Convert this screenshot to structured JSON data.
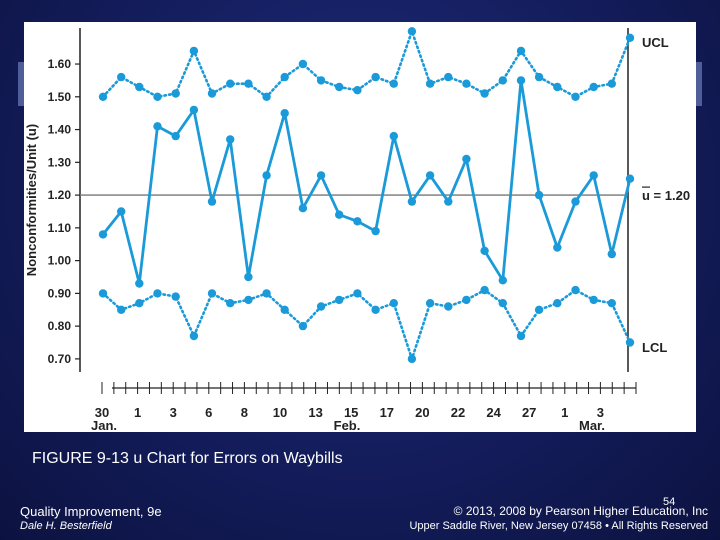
{
  "slide": {
    "caption": "FIGURE 9-13 u Chart for Errors on Waybills",
    "footer_title": "Quality Improvement, 9e",
    "footer_author": "Dale H. Besterfield",
    "page_number": "54",
    "copyright": "© 2013, 2008 by Pearson Higher Education, Inc",
    "address": "Upper Saddle River, New Jersey 07458 • All Rights Reserved"
  },
  "colors": {
    "line": "#1a9ad8",
    "center": "#777777",
    "axis": "#222222",
    "accent": "#1e2b7a"
  },
  "chart_data": {
    "type": "line",
    "ylabel": "Nonconformities/Unit (u)",
    "ylim": [
      0.66,
      1.71
    ],
    "yticks": [
      "0.70",
      "0.80",
      "0.90",
      "1.00",
      "1.10",
      "1.20",
      "1.30",
      "1.40",
      "1.50",
      "1.60"
    ],
    "xtick_labels": [
      "30",
      "1",
      "3",
      "6",
      "8",
      "10",
      "13",
      "15",
      "17",
      "20",
      "22",
      "24",
      "27",
      "1",
      "3"
    ],
    "month_labels": [
      "Jan.",
      "Feb.",
      "Mar."
    ],
    "center_line": 1.2,
    "center_label": "u = 1.20",
    "ucl_label": "UCL",
    "lcl_label": "LCL",
    "series": [
      {
        "name": "UCL",
        "style": "dotted",
        "values": [
          1.5,
          1.56,
          1.53,
          1.5,
          1.51,
          1.64,
          1.51,
          1.54,
          1.54,
          1.5,
          1.56,
          1.6,
          1.55,
          1.53,
          1.52,
          1.56,
          1.54,
          1.7,
          1.54,
          1.56,
          1.54,
          1.51,
          1.55,
          1.64,
          1.56,
          1.53,
          1.5,
          1.53,
          1.54,
          1.68
        ]
      },
      {
        "name": "u",
        "style": "solid",
        "values": [
          1.08,
          1.15,
          0.93,
          1.41,
          1.38,
          1.46,
          1.18,
          1.37,
          0.95,
          1.26,
          1.45,
          1.16,
          1.26,
          1.14,
          1.12,
          1.09,
          1.38,
          1.18,
          1.26,
          1.18,
          1.31,
          1.03,
          0.94,
          1.55,
          1.2,
          1.04,
          1.18,
          1.26,
          1.02,
          1.25
        ]
      },
      {
        "name": "LCL",
        "style": "dotted",
        "values": [
          0.9,
          0.85,
          0.87,
          0.9,
          0.89,
          0.77,
          0.9,
          0.87,
          0.88,
          0.9,
          0.85,
          0.8,
          0.86,
          0.88,
          0.9,
          0.85,
          0.87,
          0.7,
          0.87,
          0.86,
          0.88,
          0.91,
          0.87,
          0.77,
          0.85,
          0.87,
          0.91,
          0.88,
          0.87,
          0.75
        ]
      }
    ]
  }
}
